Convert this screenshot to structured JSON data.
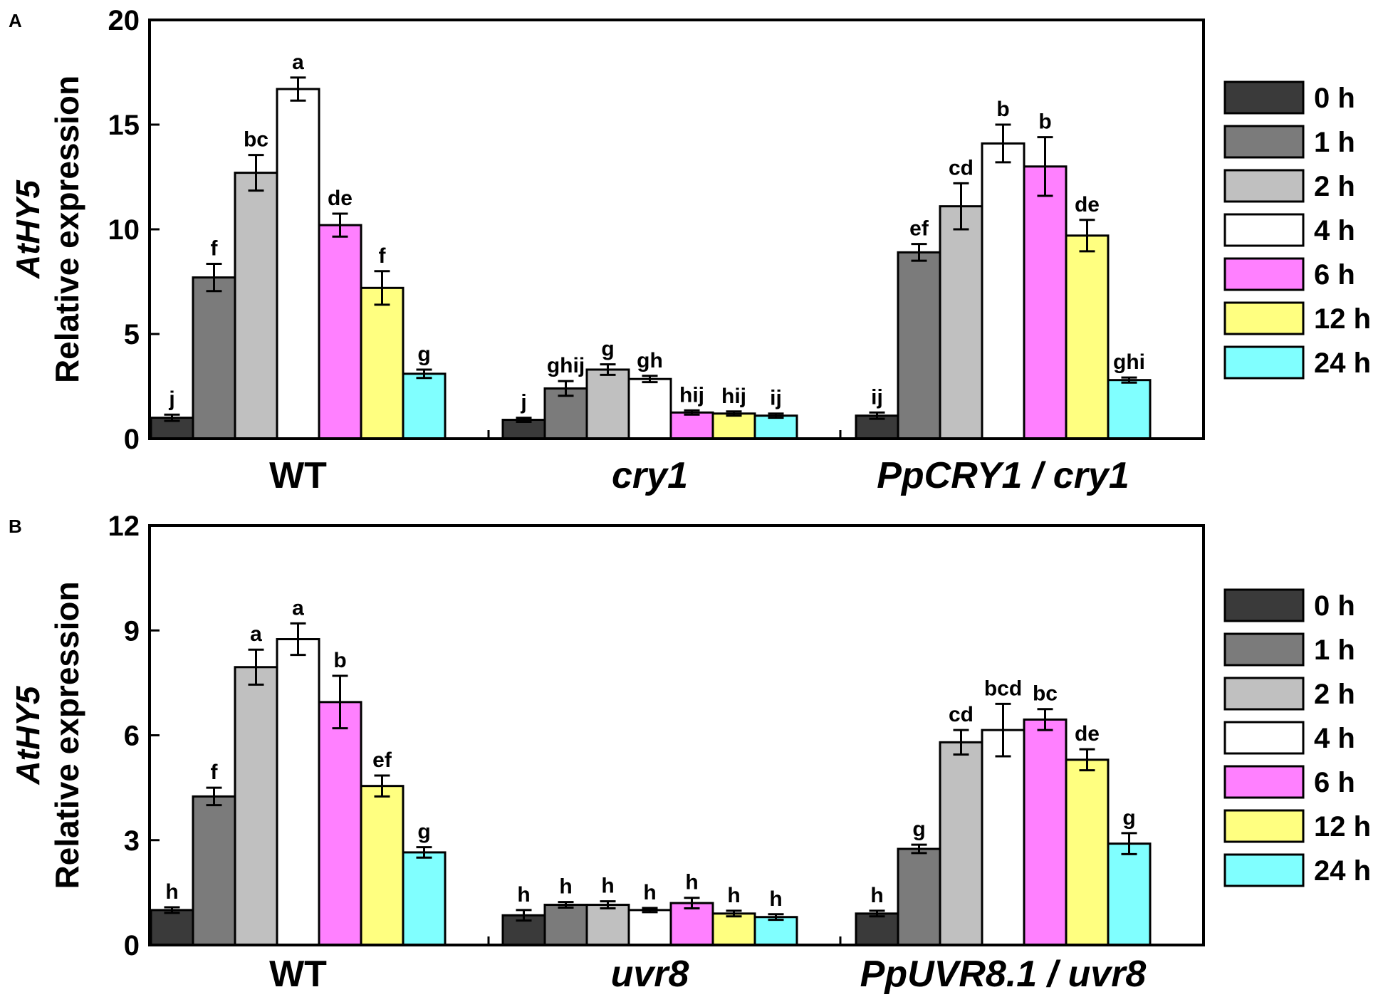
{
  "chart_data": [
    {
      "type": "bar",
      "panel_label": "A",
      "ylabel_gene": "AtHY5",
      "ylabel": "Relative expression",
      "ylim": [
        0,
        20
      ],
      "yticks": [
        "0",
        "5",
        "10",
        "15",
        "20"
      ],
      "groups": [
        {
          "label": "WT",
          "italic": false
        },
        {
          "label": "cry1",
          "italic": true
        },
        {
          "label": "PpCRY1 / cry1",
          "italic": true
        }
      ],
      "series": [
        {
          "name": "0 h",
          "color": "#3a3a3a",
          "values": [
            1.0,
            0.9,
            1.1
          ],
          "errors": [
            0.15,
            0.1,
            0.15
          ],
          "letters": [
            "j",
            "j",
            "ij"
          ]
        },
        {
          "name": "1 h",
          "color": "#7b7b7b",
          "values": [
            7.7,
            2.4,
            8.9
          ],
          "errors": [
            0.65,
            0.35,
            0.4
          ],
          "letters": [
            "f",
            "ghij",
            "ef"
          ]
        },
        {
          "name": "2 h",
          "color": "#c0c0c0",
          "values": [
            12.7,
            3.3,
            11.1
          ],
          "errors": [
            0.85,
            0.25,
            1.1
          ],
          "letters": [
            "bc",
            "g",
            "cd"
          ]
        },
        {
          "name": "4 h",
          "color": "#ffffff",
          "values": [
            16.7,
            2.85,
            14.1
          ],
          "errors": [
            0.55,
            0.15,
            0.9
          ],
          "letters": [
            "a",
            "gh",
            "b"
          ]
        },
        {
          "name": "6 h",
          "color": "#ff80ff",
          "values": [
            10.2,
            1.25,
            13.0
          ],
          "errors": [
            0.55,
            0.1,
            1.4
          ],
          "letters": [
            "de",
            "hij",
            "b"
          ]
        },
        {
          "name": "12 h",
          "color": "#ffff80",
          "values": [
            7.2,
            1.2,
            9.7
          ],
          "errors": [
            0.8,
            0.1,
            0.75
          ],
          "letters": [
            "f",
            "hij",
            "de"
          ]
        },
        {
          "name": "24 h",
          "color": "#80ffff",
          "values": [
            3.1,
            1.1,
            2.8
          ],
          "errors": [
            0.2,
            0.1,
            0.12
          ],
          "letters": [
            "g",
            "ij",
            "ghi"
          ]
        }
      ]
    },
    {
      "type": "bar",
      "panel_label": "B",
      "ylabel_gene": "AtHY5",
      "ylabel": "Relative expression",
      "ylim": [
        0,
        12
      ],
      "yticks": [
        "0",
        "3",
        "6",
        "9",
        "12"
      ],
      "groups": [
        {
          "label": "WT",
          "italic": false
        },
        {
          "label": "uvr8",
          "italic": true
        },
        {
          "label": "PpUVR8.1 / uvr8",
          "italic": true
        }
      ],
      "series": [
        {
          "name": "0 h",
          "color": "#3a3a3a",
          "values": [
            1.0,
            0.85,
            0.9
          ],
          "errors": [
            0.08,
            0.15,
            0.08
          ],
          "letters": [
            "h",
            "h",
            "h"
          ]
        },
        {
          "name": "1 h",
          "color": "#7b7b7b",
          "values": [
            4.25,
            1.15,
            2.75
          ],
          "errors": [
            0.25,
            0.08,
            0.12
          ],
          "letters": [
            "f",
            "h",
            "g"
          ]
        },
        {
          "name": "2 h",
          "color": "#c0c0c0",
          "values": [
            7.95,
            1.15,
            5.8
          ],
          "errors": [
            0.5,
            0.1,
            0.35
          ],
          "letters": [
            "a",
            "h",
            "cd"
          ]
        },
        {
          "name": "4 h",
          "color": "#ffffff",
          "values": [
            8.75,
            1.0,
            6.15
          ],
          "errors": [
            0.45,
            0.06,
            0.75
          ],
          "letters": [
            "a",
            "h",
            "bcd"
          ]
        },
        {
          "name": "6 h",
          "color": "#ff80ff",
          "values": [
            6.95,
            1.2,
            6.45
          ],
          "errors": [
            0.75,
            0.15,
            0.3
          ],
          "letters": [
            "b",
            "h",
            "bc"
          ]
        },
        {
          "name": "12 h",
          "color": "#ffff80",
          "values": [
            4.55,
            0.9,
            5.3
          ],
          "errors": [
            0.3,
            0.08,
            0.3
          ],
          "letters": [
            "ef",
            "h",
            "de"
          ]
        },
        {
          "name": "24 h",
          "color": "#80ffff",
          "values": [
            2.65,
            0.8,
            2.9
          ],
          "errors": [
            0.15,
            0.08,
            0.3
          ],
          "letters": [
            "g",
            "h",
            "g"
          ]
        }
      ]
    }
  ]
}
